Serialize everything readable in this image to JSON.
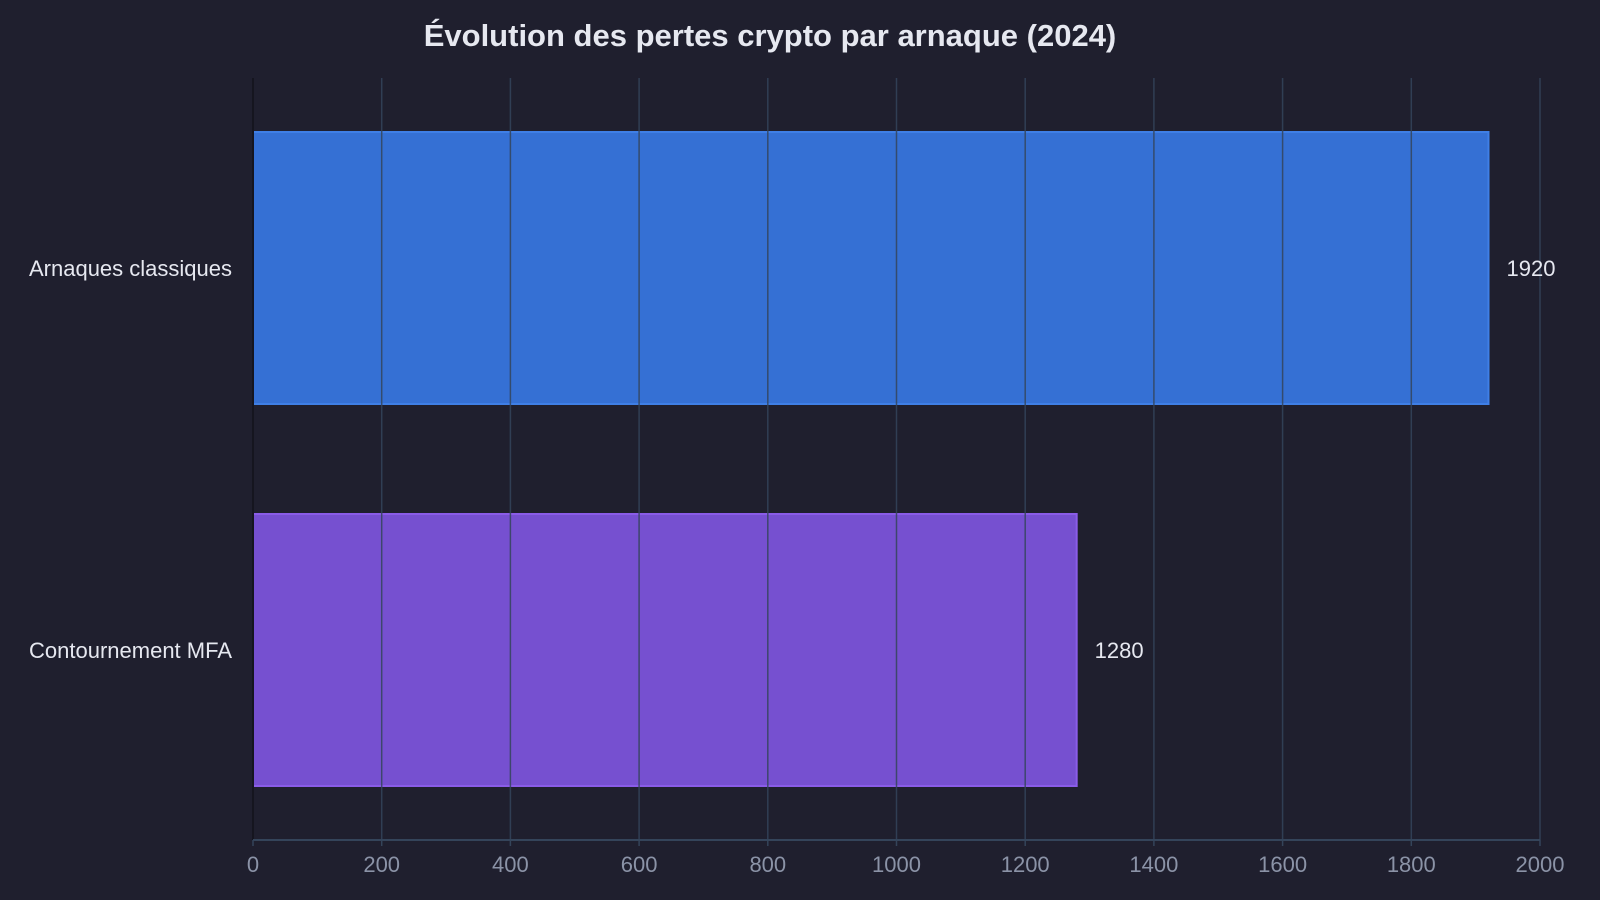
{
  "chart_data": {
    "type": "bar",
    "orientation": "horizontal",
    "title": "Évolution des pertes crypto par arnaque (2024)",
    "xlabel": "",
    "ylabel": "",
    "categories": [
      "Arnaques classiques",
      "Contournement MFA"
    ],
    "values": [
      1920,
      1280
    ],
    "value_labels": [
      "1920",
      "1280"
    ],
    "colors": [
      "#3570d4",
      "#7650d0"
    ],
    "border_colors": [
      "#3f7fe6",
      "#8a5ce8"
    ],
    "xlim": [
      0,
      2000
    ],
    "xticks": [
      0,
      200,
      400,
      600,
      800,
      1000,
      1200,
      1400,
      1600,
      1800,
      2000
    ],
    "xtick_labels": [
      "0",
      "200",
      "400",
      "600",
      "800",
      "1000",
      "1200",
      "1400",
      "1600",
      "1800",
      "2000"
    ],
    "grid": true,
    "legend": "none"
  },
  "theme": {
    "background": "#1f1f2e",
    "grid_color": "#34445a",
    "text_color": "#e6e8f0",
    "tick_color": "#8b93a7"
  }
}
